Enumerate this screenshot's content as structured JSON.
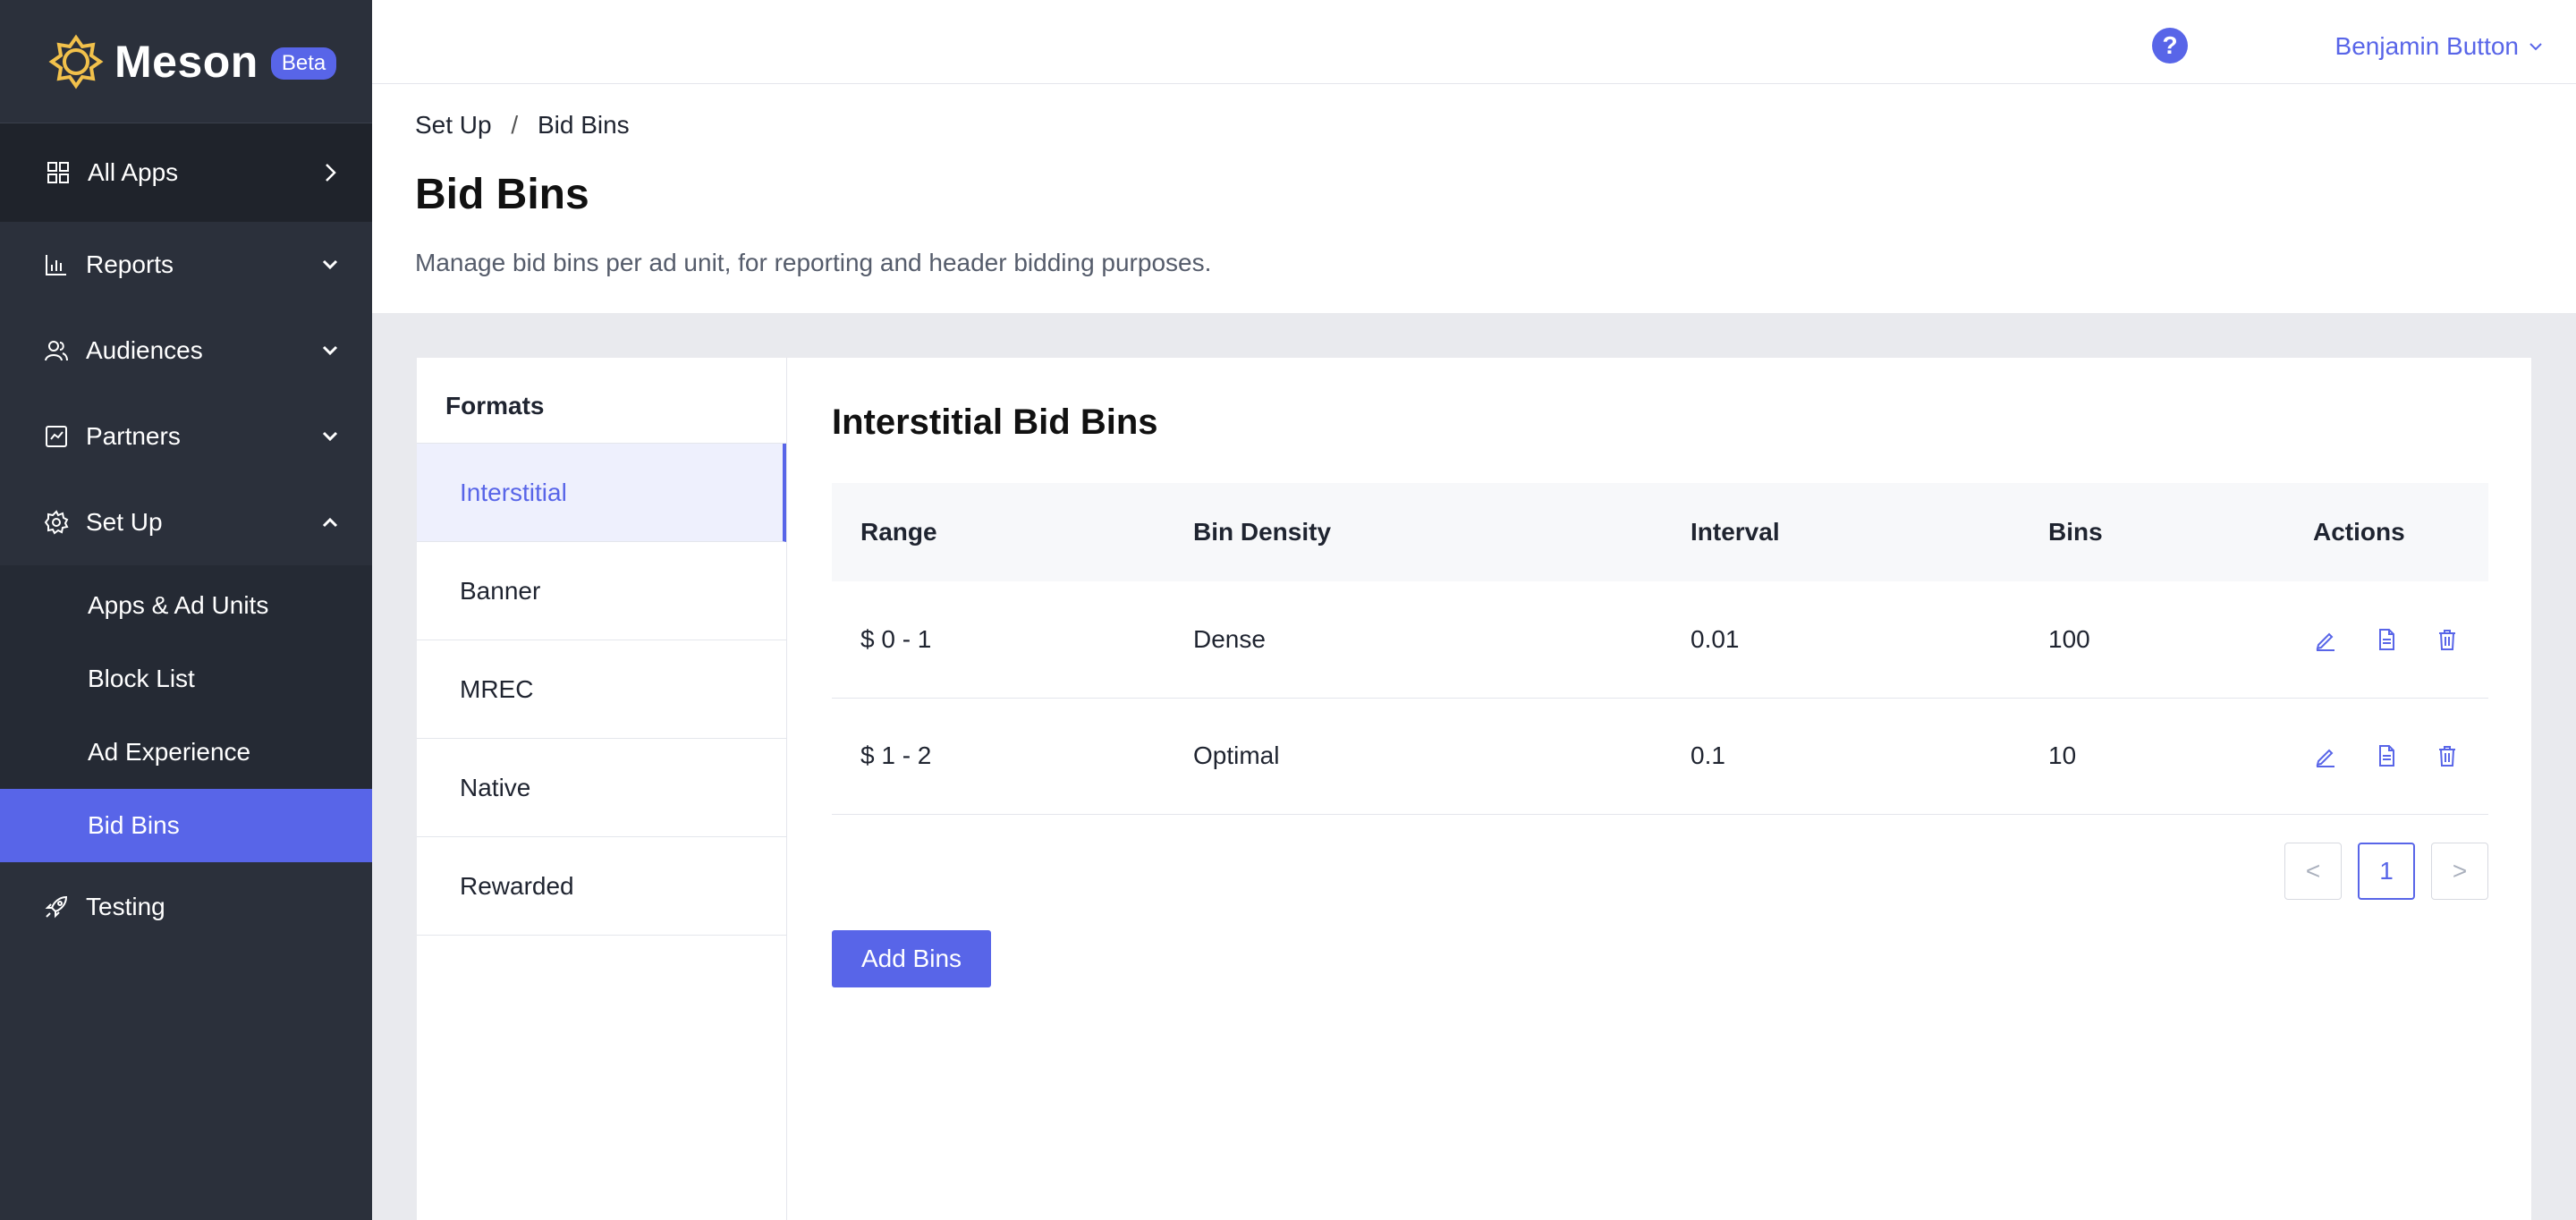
{
  "brand": {
    "name": "Meson",
    "badge": "Beta"
  },
  "colors": {
    "accent": "#5865e8",
    "sidebar": "#2b303b",
    "logo": "#f2c14b"
  },
  "sidebar": {
    "all_apps": "All Apps",
    "items": [
      {
        "label": "Reports",
        "icon": "bar-chart-icon"
      },
      {
        "label": "Audiences",
        "icon": "audience-icon"
      },
      {
        "label": "Partners",
        "icon": "partners-icon"
      },
      {
        "label": "Set Up",
        "icon": "gear-icon"
      }
    ],
    "setup_children": [
      "Apps & Ad Units",
      "Block List",
      "Ad Experience",
      "Bid Bins"
    ],
    "active_child": "Bid Bins",
    "testing": "Testing"
  },
  "topbar": {
    "help": "?",
    "user": "Benjamin Button"
  },
  "header": {
    "breadcrumb": [
      "Set Up",
      "Bid Bins"
    ],
    "breadcrumb_sep": "/",
    "title": "Bid Bins",
    "description": "Manage bid bins per ad unit, for reporting and header bidding purposes."
  },
  "formats": {
    "title": "Formats",
    "items": [
      "Interstitial",
      "Banner",
      "MREC",
      "Native",
      "Rewarded"
    ],
    "active": "Interstitial"
  },
  "bins": {
    "title": "Interstitial Bid Bins",
    "columns": [
      "Range",
      "Bin Density",
      "Interval",
      "Bins",
      "Actions"
    ],
    "rows": [
      {
        "range": "$ 0 - 1",
        "density": "Dense",
        "interval": "0.01",
        "bins": "100"
      },
      {
        "range": "$ 1 - 2",
        "density": "Optimal",
        "interval": "0.1",
        "bins": "10"
      }
    ],
    "pagination": {
      "prev": "<",
      "current": "1",
      "next": ">"
    },
    "add_button": "Add Bins"
  }
}
